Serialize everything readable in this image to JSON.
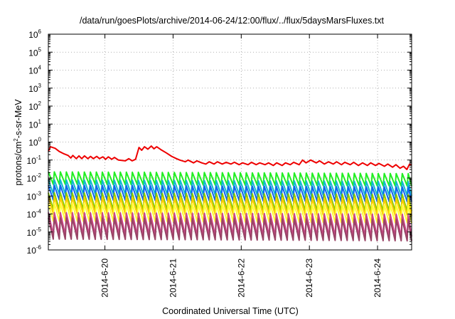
{
  "chart_data": {
    "type": "line",
    "title": "/data/run/goesPlots/archive/2014-06-24/12:00/flux/../flux/5daysMarsFluxes.txt",
    "xlabel": "Coordinated Universal Time (UTC)",
    "ylabel": "protons/cm2-s-sr-MeV",
    "ylabel_parts": {
      "pre": "protons/cm",
      "sup": "2",
      "post": "-s-sr-MeV"
    },
    "y_scale": "log",
    "ylim": [
      1e-06,
      1000000.0
    ],
    "y_ticks": [
      {
        "base": "10",
        "exp": "-6"
      },
      {
        "base": "10",
        "exp": "-5"
      },
      {
        "base": "10",
        "exp": "-4"
      },
      {
        "base": "10",
        "exp": "-3"
      },
      {
        "base": "10",
        "exp": "-2"
      },
      {
        "base": "10",
        "exp": "-1"
      },
      {
        "base": "10",
        "exp": "0"
      },
      {
        "base": "10",
        "exp": "1"
      },
      {
        "base": "10",
        "exp": "2"
      },
      {
        "base": "10",
        "exp": "3"
      },
      {
        "base": "10",
        "exp": "4"
      },
      {
        "base": "10",
        "exp": "5"
      },
      {
        "base": "10",
        "exp": "6"
      }
    ],
    "xlim": [
      2014.0619,
      2014.0625
    ],
    "x_range_days": {
      "start": "2014-06-19T04:00",
      "end": "2014-06-24T12:00"
    },
    "x_ticks": [
      {
        "label": "2014-6-20",
        "day": 1.0
      },
      {
        "label": "2014-6-21",
        "day": 2.0
      },
      {
        "label": "2014-6-22",
        "day": 3.0
      },
      {
        "label": "2014-6-23",
        "day": 4.0
      },
      {
        "label": "2014-6-24",
        "day": 5.0
      }
    ],
    "x_start_day": 0.17,
    "x_end_day": 5.5,
    "grid": true,
    "grid_style": "dotted",
    "series": [
      {
        "color": "#ee0000",
        "points": [
          [
            0.17,
            0.3
          ],
          [
            0.2,
            0.55
          ],
          [
            0.27,
            0.45
          ],
          [
            0.33,
            0.3
          ],
          [
            0.4,
            0.22
          ],
          [
            0.46,
            0.18
          ],
          [
            0.5,
            0.13
          ],
          [
            0.53,
            0.18
          ],
          [
            0.58,
            0.12
          ],
          [
            0.62,
            0.17
          ],
          [
            0.66,
            0.12
          ],
          [
            0.7,
            0.17
          ],
          [
            0.75,
            0.12
          ],
          [
            0.79,
            0.16
          ],
          [
            0.83,
            0.12
          ],
          [
            0.88,
            0.16
          ],
          [
            0.92,
            0.12
          ],
          [
            0.97,
            0.15
          ],
          [
            1.01,
            0.11
          ],
          [
            1.05,
            0.15
          ],
          [
            1.1,
            0.11
          ],
          [
            1.14,
            0.14
          ],
          [
            1.2,
            0.1
          ],
          [
            1.3,
            0.09
          ],
          [
            1.35,
            0.12
          ],
          [
            1.4,
            0.09
          ],
          [
            1.45,
            0.11
          ],
          [
            1.5,
            0.5
          ],
          [
            1.54,
            0.35
          ],
          [
            1.58,
            0.55
          ],
          [
            1.63,
            0.4
          ],
          [
            1.68,
            0.6
          ],
          [
            1.72,
            0.42
          ],
          [
            1.76,
            0.55
          ],
          [
            1.82,
            0.38
          ],
          [
            1.9,
            0.25
          ],
          [
            1.98,
            0.16
          ],
          [
            2.05,
            0.12
          ],
          [
            2.1,
            0.1
          ],
          [
            2.18,
            0.08
          ],
          [
            2.22,
            0.1
          ],
          [
            2.3,
            0.07
          ],
          [
            2.35,
            0.09
          ],
          [
            2.42,
            0.07
          ],
          [
            2.48,
            0.06
          ],
          [
            2.53,
            0.08
          ],
          [
            2.6,
            0.06
          ],
          [
            2.65,
            0.08
          ],
          [
            2.72,
            0.06
          ],
          [
            2.78,
            0.075
          ],
          [
            2.85,
            0.06
          ],
          [
            2.9,
            0.075
          ],
          [
            2.97,
            0.055
          ],
          [
            3.02,
            0.07
          ],
          [
            3.1,
            0.055
          ],
          [
            3.15,
            0.075
          ],
          [
            3.22,
            0.055
          ],
          [
            3.27,
            0.07
          ],
          [
            3.35,
            0.055
          ],
          [
            3.4,
            0.07
          ],
          [
            3.47,
            0.05
          ],
          [
            3.52,
            0.07
          ],
          [
            3.6,
            0.05
          ],
          [
            3.65,
            0.07
          ],
          [
            3.72,
            0.055
          ],
          [
            3.77,
            0.075
          ],
          [
            3.85,
            0.055
          ],
          [
            3.9,
            0.1
          ],
          [
            3.95,
            0.07
          ],
          [
            4.02,
            0.1
          ],
          [
            4.1,
            0.07
          ],
          [
            4.15,
            0.09
          ],
          [
            4.22,
            0.06
          ],
          [
            4.28,
            0.08
          ],
          [
            4.35,
            0.06
          ],
          [
            4.4,
            0.08
          ],
          [
            4.47,
            0.055
          ],
          [
            4.52,
            0.075
          ],
          [
            4.6,
            0.055
          ],
          [
            4.65,
            0.075
          ],
          [
            4.72,
            0.05
          ],
          [
            4.78,
            0.07
          ],
          [
            4.85,
            0.05
          ],
          [
            4.9,
            0.07
          ],
          [
            4.97,
            0.05
          ],
          [
            5.02,
            0.065
          ],
          [
            5.1,
            0.045
          ],
          [
            5.15,
            0.06
          ],
          [
            5.22,
            0.04
          ],
          [
            5.27,
            0.055
          ],
          [
            5.33,
            0.035
          ],
          [
            5.38,
            0.045
          ],
          [
            5.43,
            0.03
          ],
          [
            5.47,
            0.06
          ],
          [
            5.5,
            0.055
          ]
        ]
      },
      {
        "color": "#22ee22",
        "sawtooth": {
          "peak": 0.022,
          "trough": 0.0045,
          "period": 0.088,
          "trend_end": 0.8
        }
      },
      {
        "color": "#11bbcc",
        "sawtooth": {
          "peak": 0.008,
          "trough": 0.0013,
          "period": 0.088,
          "trend_end": 0.8
        }
      },
      {
        "color": "#1166ee",
        "sawtooth": {
          "peak": 0.004,
          "trough": 0.0006,
          "period": 0.088,
          "trend_end": 0.8
        }
      },
      {
        "color": "#88cc00",
        "sawtooth": {
          "peak": 0.0015,
          "trough": 0.00018,
          "period": 0.088,
          "trend_end": 0.8
        }
      },
      {
        "color": "#ffcc00",
        "sawtooth": {
          "peak": 0.0009,
          "trough": 0.0001,
          "period": 0.088,
          "trend_end": 0.8
        }
      },
      {
        "color": "#ffff33",
        "sawtooth": {
          "peak": 0.0004,
          "trough": 4e-05,
          "period": 0.088,
          "trend_end": 0.8
        }
      },
      {
        "color": "#cc4488",
        "sawtooth": {
          "peak": 0.00012,
          "trough": 7e-06,
          "period": 0.088,
          "trend_end": 0.8
        }
      },
      {
        "color": "#994466",
        "sawtooth": {
          "peak": 6e-05,
          "trough": 4e-06,
          "period": 0.088,
          "trend_end": 0.8
        }
      }
    ]
  }
}
